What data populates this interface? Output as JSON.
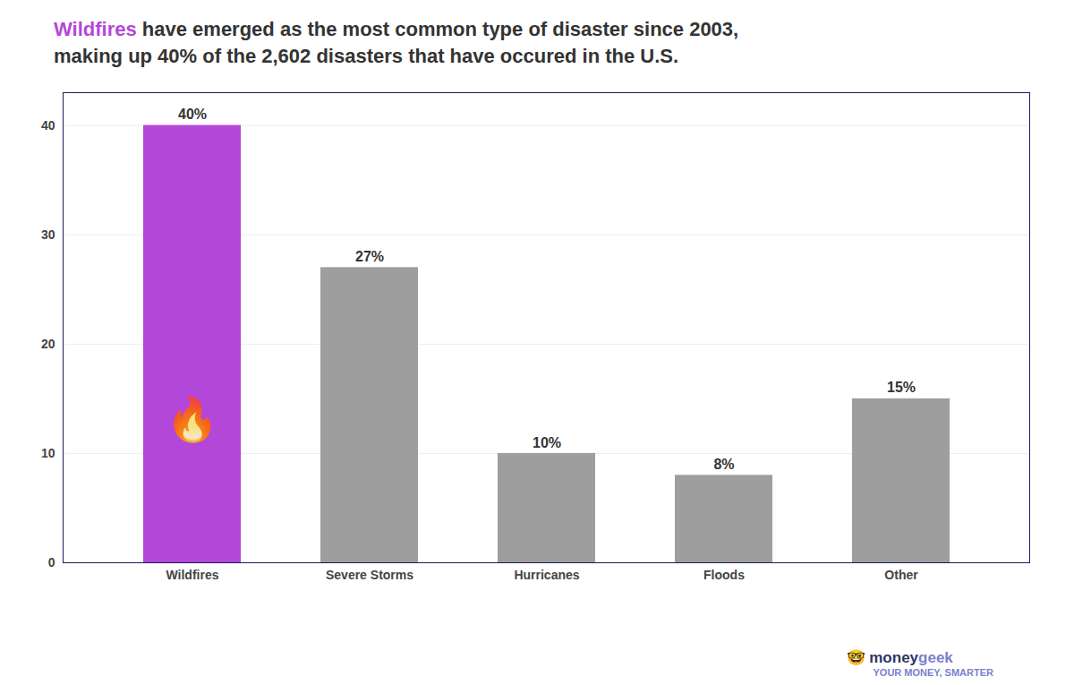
{
  "chart_data": {
    "type": "bar",
    "title": "Wildfires have emerged as the most common type of disaster since 2003,",
    "subtitle": "making up 40% of the 2,602 disasters that have occured in the U.S.",
    "categories": [
      "Wildfires",
      "Severe Storms",
      "Hurricanes",
      "Floods",
      "Other"
    ],
    "values": [
      40,
      27,
      10,
      8,
      15
    ],
    "value_labels": [
      "40%",
      "27%",
      "10%",
      "8%",
      "15%"
    ],
    "data_labels": true,
    "colors": [
      "#b347d9",
      "#9e9e9e",
      "#9e9e9e",
      "#9e9e9e",
      "#9e9e9e"
    ],
    "ylim": [
      0,
      43
    ],
    "yticks": [
      0,
      10,
      20,
      30,
      40
    ],
    "grid": true,
    "annotations": [
      {
        "text": "🔥",
        "x": "Wildfires",
        "y": 13
      },
      {
        "text": "🤓 money"
      },
      {
        "text": "geek"
      },
      {
        "text": "YOUR MONEY, SMARTER"
      }
    ]
  }
}
